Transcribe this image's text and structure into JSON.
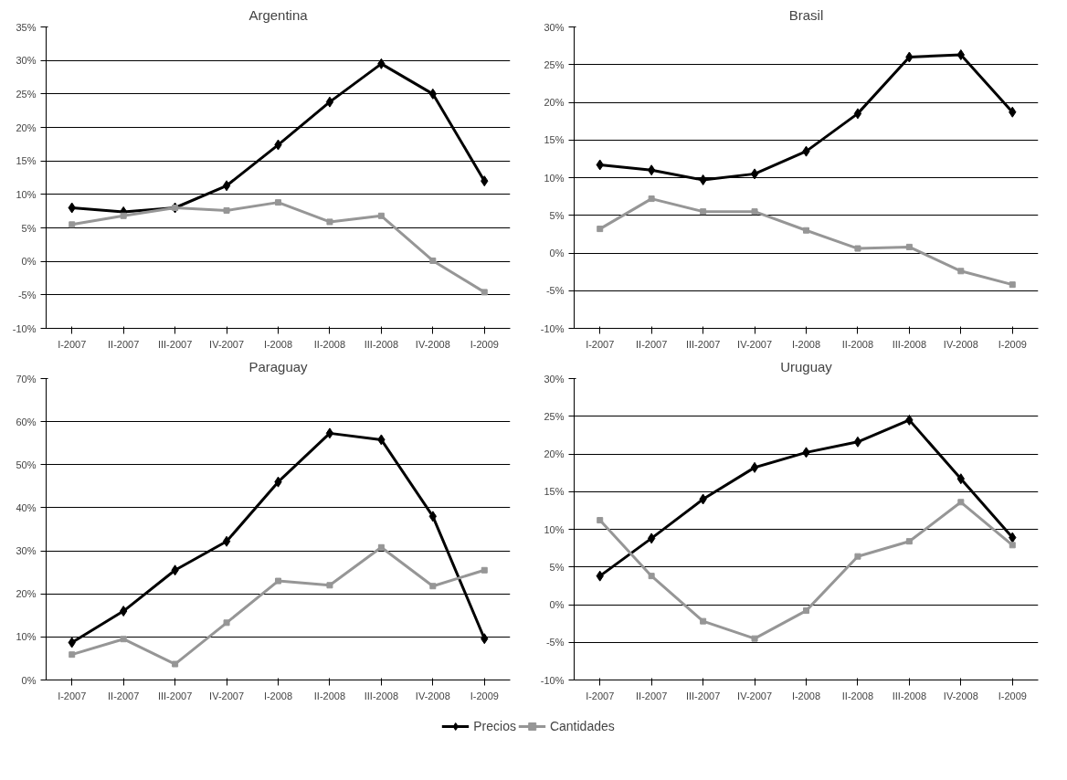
{
  "chart_data": [
    {
      "type": "line",
      "title": "Argentina",
      "categories": [
        "I-2007",
        "II-2007",
        "III-2007",
        "IV-2007",
        "I-2008",
        "II-2008",
        "III-2008",
        "IV-2008",
        "I-2009"
      ],
      "ylim": [
        -10,
        35
      ],
      "yticks": [
        {
          "value": -10,
          "label": "-10%"
        },
        {
          "value": -5,
          "label": "-5%"
        },
        {
          "value": 0,
          "label": "0%"
        },
        {
          "value": 5,
          "label": "5%"
        },
        {
          "value": 10,
          "label": "10%"
        },
        {
          "value": 15,
          "label": "15%"
        },
        {
          "value": 20,
          "label": "20%"
        },
        {
          "value": 25,
          "label": "25%"
        },
        {
          "value": 30,
          "label": "30%"
        },
        {
          "value": 35,
          "label": "35%"
        }
      ],
      "grid": "y",
      "series": [
        {
          "color": "#000000",
          "marker": "diamond",
          "values": [
            8,
            7.4,
            8,
            11.3,
            17.4,
            23.8,
            29.5,
            25,
            12
          ]
        },
        {
          "color": "#969696",
          "marker": "square",
          "values": [
            5.5,
            6.8,
            8,
            7.6,
            8.8,
            5.9,
            6.8,
            0.1,
            -4.6
          ]
        }
      ]
    },
    {
      "type": "line",
      "title": "Brasil",
      "categories": [
        "I-2007",
        "II-2007",
        "III-2007",
        "IV-2007",
        "I-2008",
        "II-2008",
        "III-2008",
        "IV-2008",
        "I-2009"
      ],
      "ylim": [
        -10,
        30
      ],
      "yticks": [
        {
          "value": -10,
          "label": "-10%"
        },
        {
          "value": -5,
          "label": "-5%"
        },
        {
          "value": 0,
          "label": "0%"
        },
        {
          "value": 5,
          "label": "5%"
        },
        {
          "value": 10,
          "label": "10%"
        },
        {
          "value": 15,
          "label": "15%"
        },
        {
          "value": 20,
          "label": "20%"
        },
        {
          "value": 25,
          "label": "25%"
        },
        {
          "value": 30,
          "label": "30%"
        }
      ],
      "grid": "y",
      "series": [
        {
          "color": "#000000",
          "marker": "diamond",
          "values": [
            11.7,
            11,
            9.7,
            10.5,
            13.5,
            18.5,
            26,
            26.3,
            18.7
          ]
        },
        {
          "color": "#969696",
          "marker": "square",
          "values": [
            3.2,
            7.2,
            5.5,
            5.5,
            3,
            0.6,
            0.8,
            -2.4,
            -4.2
          ]
        }
      ]
    },
    {
      "type": "line",
      "title": "Paraguay",
      "categories": [
        "I-2007",
        "II-2007",
        "III-2007",
        "IV-2007",
        "I-2008",
        "II-2008",
        "III-2008",
        "IV-2008",
        "I-2009"
      ],
      "ylim": [
        0,
        70
      ],
      "yticks": [
        {
          "value": 0,
          "label": "0%"
        },
        {
          "value": 10,
          "label": "10%"
        },
        {
          "value": 20,
          "label": "20%"
        },
        {
          "value": 30,
          "label": "30%"
        },
        {
          "value": 40,
          "label": "40%"
        },
        {
          "value": 50,
          "label": "50%"
        },
        {
          "value": 60,
          "label": "60%"
        },
        {
          "value": 70,
          "label": "70%"
        }
      ],
      "grid": "y",
      "series": [
        {
          "color": "#000000",
          "marker": "diamond",
          "values": [
            8.7,
            16,
            25.5,
            32.2,
            46,
            57.3,
            55.8,
            38,
            9.6
          ]
        },
        {
          "color": "#969696",
          "marker": "square",
          "values": [
            5.9,
            9.5,
            3.7,
            13.3,
            23,
            22,
            30.8,
            21.8,
            25.5
          ]
        }
      ]
    },
    {
      "type": "line",
      "title": "Uruguay",
      "categories": [
        "I-2007",
        "II-2007",
        "III-2007",
        "IV-2007",
        "I-2008",
        "II-2008",
        "III-2008",
        "IV-2008",
        "I-2009"
      ],
      "ylim": [
        -10,
        30
      ],
      "yticks": [
        {
          "value": -10,
          "label": "-10%"
        },
        {
          "value": -5,
          "label": "-5%"
        },
        {
          "value": 0,
          "label": "0%"
        },
        {
          "value": 5,
          "label": "5%"
        },
        {
          "value": 10,
          "label": "10%"
        },
        {
          "value": 15,
          "label": "15%"
        },
        {
          "value": 20,
          "label": "20%"
        },
        {
          "value": 25,
          "label": "25%"
        },
        {
          "value": 30,
          "label": "30%"
        }
      ],
      "grid": "y",
      "legend": "bottom",
      "series": [
        {
          "name": "Precios",
          "color": "#000000",
          "marker": "diamond",
          "values": [
            3.8,
            8.8,
            14,
            18.2,
            20.2,
            21.6,
            24.5,
            16.7,
            8.9
          ]
        },
        {
          "name": "Cantidades",
          "color": "#969696",
          "marker": "square",
          "values": [
            11.2,
            3.8,
            -2.2,
            -4.5,
            -0.8,
            6.4,
            8.4,
            13.6,
            7.9
          ]
        }
      ]
    }
  ]
}
